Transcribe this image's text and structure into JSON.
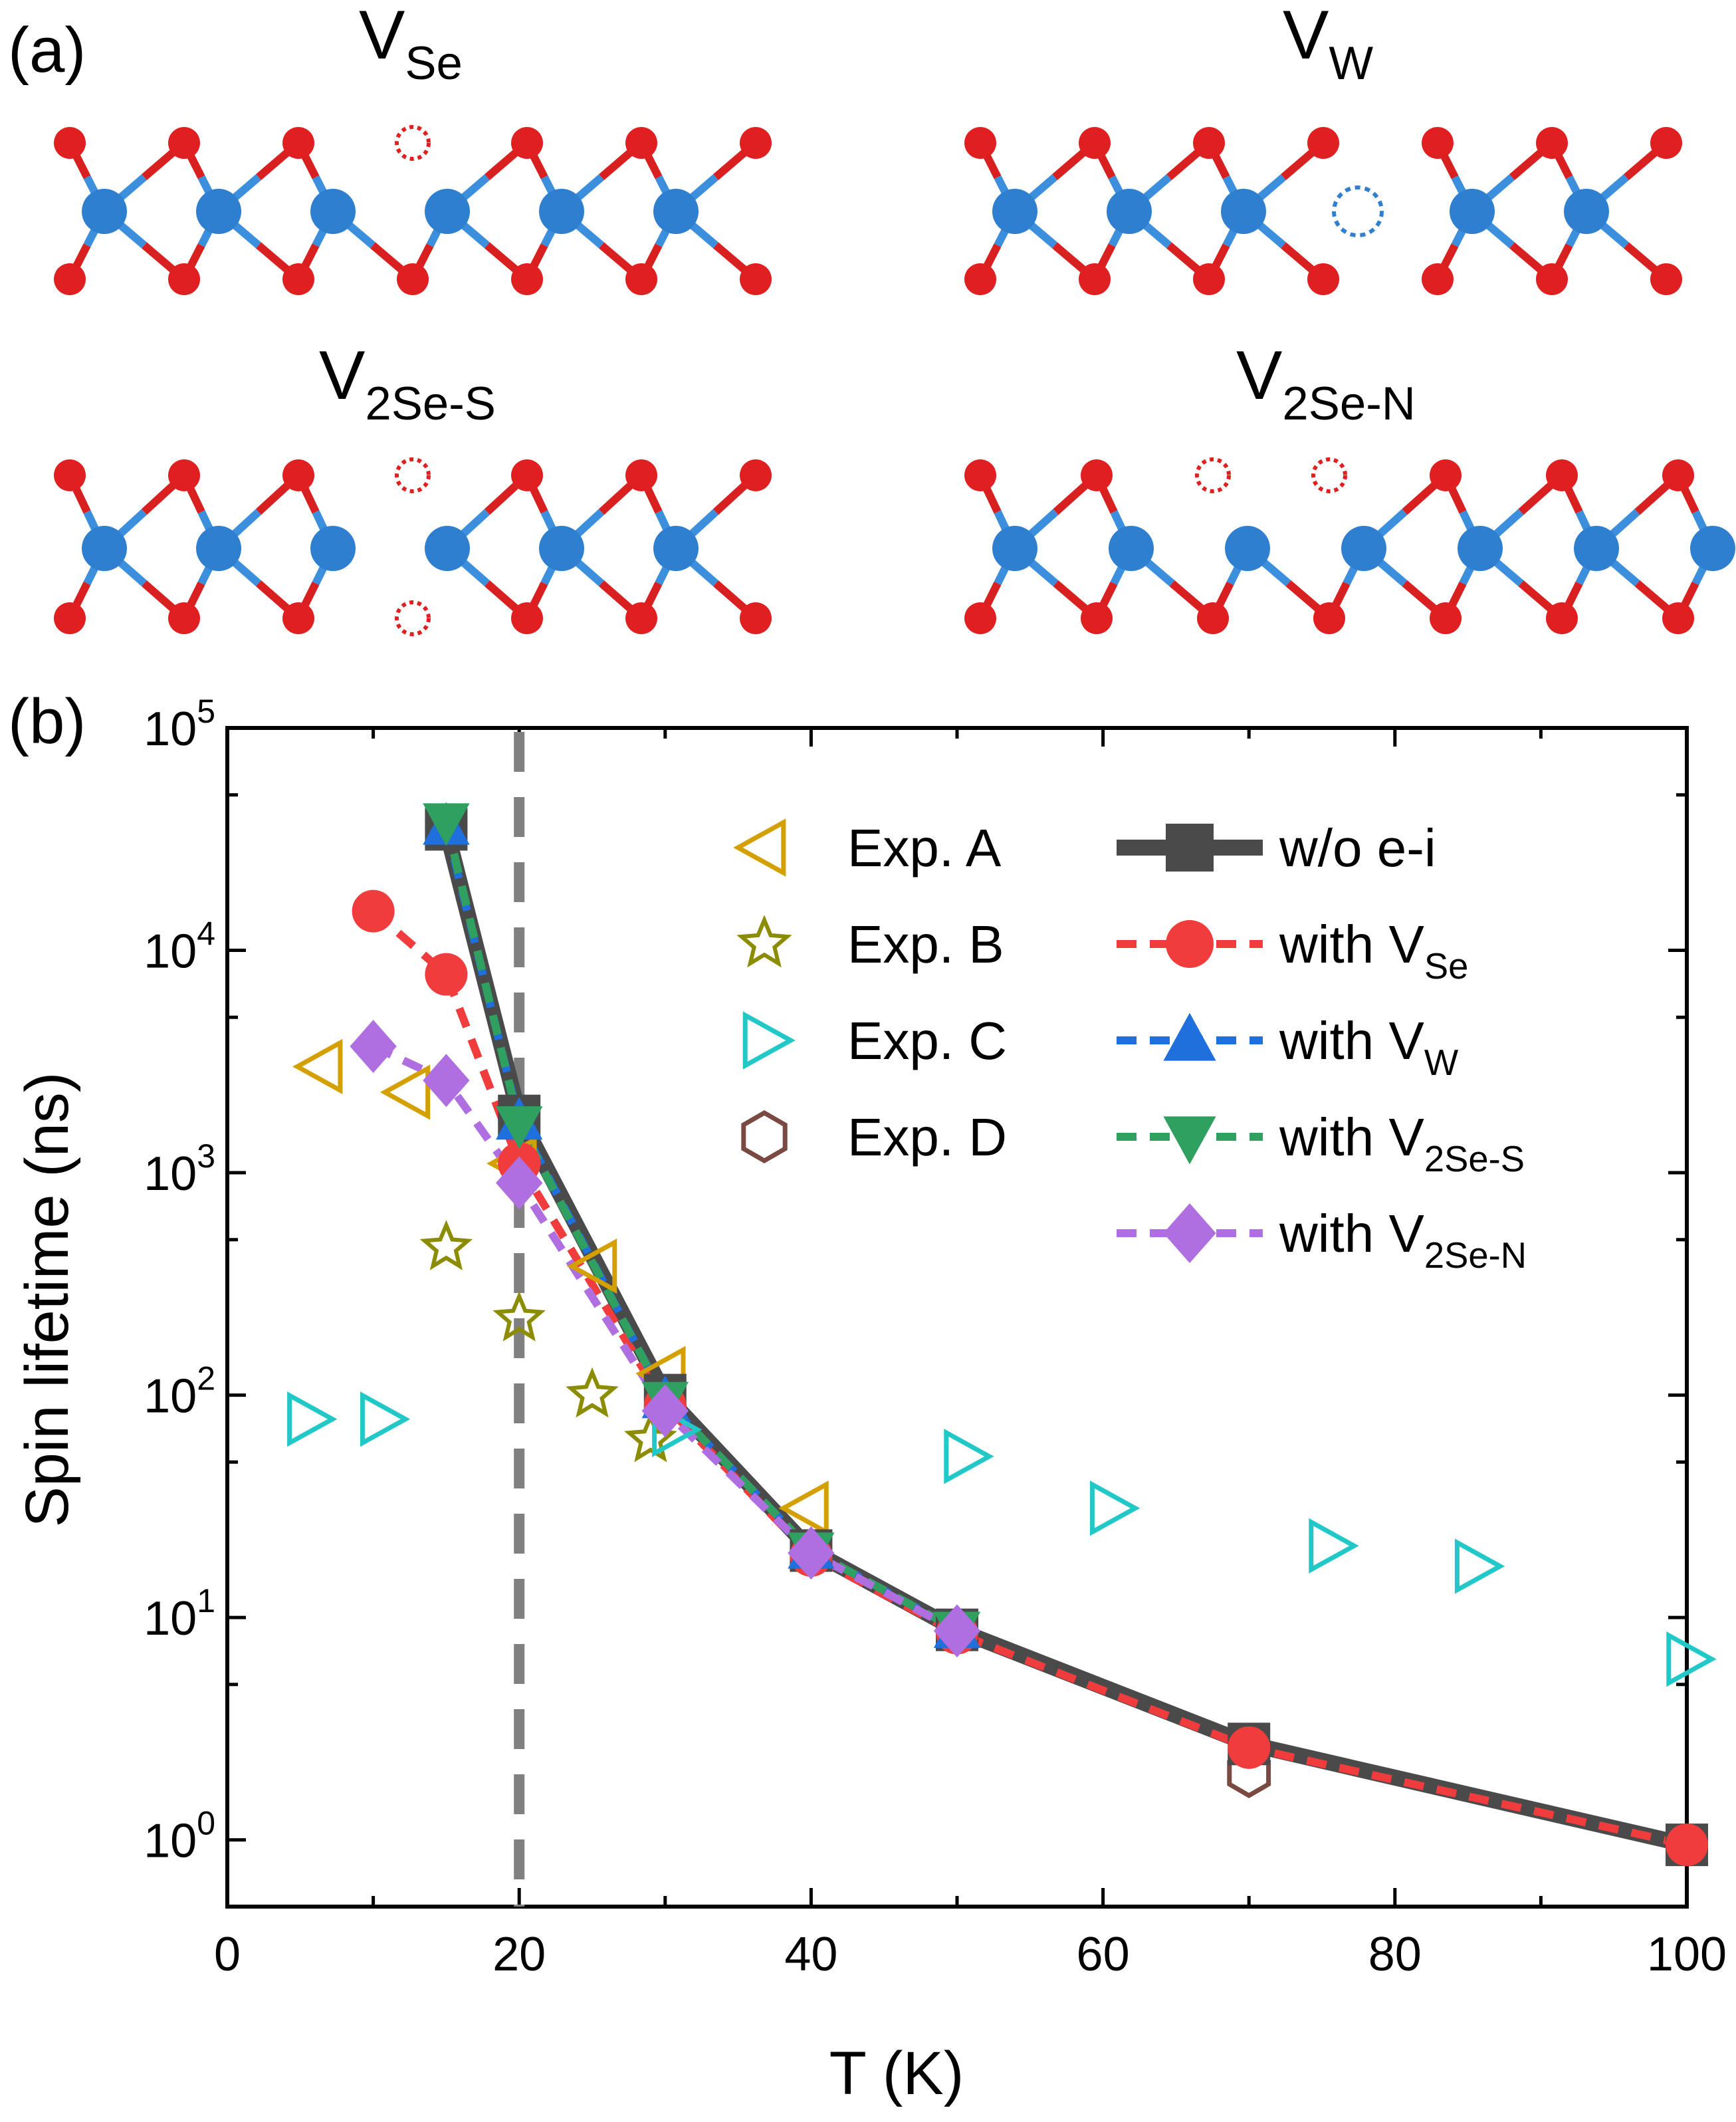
{
  "panel_a": {
    "label": "(a)",
    "structures": [
      {
        "name": "VSe",
        "base": "V",
        "sub": "Se"
      },
      {
        "name": "VW",
        "base": "V",
        "sub": "W"
      },
      {
        "name": "V2Se-S",
        "base": "V",
        "sub": "2Se-S"
      },
      {
        "name": "V2Se-N",
        "base": "V",
        "sub": "2Se-N"
      }
    ],
    "colors": {
      "metal": "#2f7fd0",
      "chalcogen": "#e02020",
      "metal_bond": "#3b8fdc",
      "chalcogen_bond": "#d82020"
    }
  },
  "chart_data": {
    "type": "line",
    "panel_label": "(b)",
    "xlabel": "T (K)",
    "ylabel": "Spin lifetime (ns)",
    "xlim": [
      0,
      100
    ],
    "ylim_log10": [
      -0.3,
      5
    ],
    "yscale": "log",
    "x_ticks": [
      0,
      20,
      40,
      60,
      80,
      100
    ],
    "x_tick_labels": [
      "0",
      "20",
      "40",
      "60",
      "80",
      "100"
    ],
    "y_ticks": [
      {
        "base": "10",
        "exp": "0",
        "value": 1
      },
      {
        "base": "10",
        "exp": "1",
        "value": 10
      },
      {
        "base": "10",
        "exp": "2",
        "value": 100
      },
      {
        "base": "10",
        "exp": "3",
        "value": 1000
      },
      {
        "base": "10",
        "exp": "4",
        "value": 10000
      },
      {
        "base": "10",
        "exp": "5",
        "value": 100000
      }
    ],
    "reference_line_x": 20,
    "legend_position": "top-right",
    "series": [
      {
        "name": "w/o e-i",
        "label_base": "w/o e-i",
        "label_sub": "",
        "marker": "square",
        "color": "#4a4a4a",
        "line": "solid",
        "x": [
          15,
          20,
          30,
          40,
          50,
          70,
          100
        ],
        "y": [
          35000,
          1800,
          100,
          20,
          8.8,
          2.7,
          0.95
        ]
      },
      {
        "name": "with VSe",
        "label_base": "with V",
        "label_sub": "Se",
        "marker": "circle",
        "color": "#f03c3c",
        "line": "dash",
        "x": [
          10,
          15,
          20,
          30,
          40,
          50,
          70,
          100
        ],
        "y": [
          15000,
          7800,
          1100,
          90,
          19,
          8.5,
          2.6,
          0.95
        ]
      },
      {
        "name": "with VW",
        "label_base": "with V",
        "label_sub": "W",
        "marker": "triangle-up",
        "color": "#1f6fdc",
        "line": "dash",
        "x": [
          15,
          20,
          30,
          40,
          50
        ],
        "y": [
          36000,
          1700,
          95,
          20,
          8.8
        ]
      },
      {
        "name": "with V2Se-S",
        "label_base": "with V",
        "label_sub": "2Se-S",
        "marker": "triangle-down",
        "color": "#2fa060",
        "line": "dash",
        "x": [
          15,
          20,
          30,
          40,
          50
        ],
        "y": [
          38000,
          1650,
          95,
          20,
          8.8
        ]
      },
      {
        "name": "with V2Se-N",
        "label_base": "with V",
        "label_sub": "2Se-N",
        "marker": "diamond",
        "color": "#b06fe0",
        "line": "dash",
        "x": [
          10,
          15,
          20,
          30,
          40,
          50
        ],
        "y": [
          3700,
          2600,
          900,
          85,
          19.5,
          8.7
        ]
      }
    ],
    "experiments": [
      {
        "name": "Exp. A",
        "marker": "triangle-left",
        "color": "#d4a000",
        "x": [
          6.5,
          12.5,
          19.8,
          25.3,
          30,
          39.8
        ],
        "y": [
          3000,
          2300,
          1100,
          380,
          125,
          31
        ]
      },
      {
        "name": "Exp. B",
        "marker": "star",
        "color": "#8c8c00",
        "x": [
          15,
          20,
          25,
          29
        ],
        "y": [
          460,
          220,
          100,
          63
        ]
      },
      {
        "name": "Exp. C",
        "marker": "triangle-right",
        "color": "#22c8c8",
        "x": [
          5.5,
          10.5,
          30.5,
          50.5,
          60.5,
          75.5,
          85.5,
          100
        ],
        "y": [
          78,
          78,
          70,
          53,
          31,
          21,
          17,
          6.5
        ]
      },
      {
        "name": "Exp. D",
        "marker": "hexagon",
        "color": "#7a4a42",
        "x": [
          70
        ],
        "y": [
          2.0
        ]
      }
    ]
  }
}
